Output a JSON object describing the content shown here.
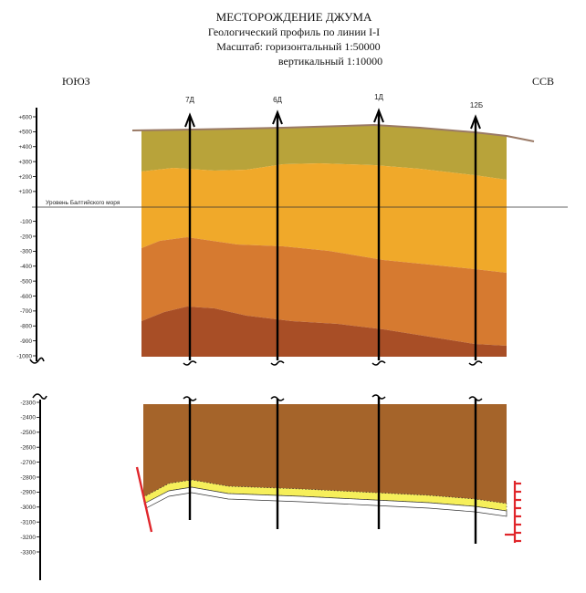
{
  "title": {
    "line1": "МЕСТОРОЖДЕНИЕ ДЖУМА",
    "line2": "Геологический профиль по линии I-I",
    "line3": "Масштаб: горизонтальный   1:50000",
    "line4": "вертикальный   1:10000"
  },
  "direction": {
    "left": "ЮЮЗ",
    "right": "ССВ"
  },
  "sea_level_label": "Уровень Балтийского моря",
  "wells": [
    "7Д",
    "6Д",
    "1Д",
    "12Б"
  ],
  "axis_upper_ticks": [
    "+600",
    "+500",
    "+400",
    "+300",
    "+200",
    "+100",
    "-100",
    "-200",
    "-300",
    "-400",
    "-500",
    "-600",
    "-700",
    "-800",
    "-900",
    "-1000"
  ],
  "axis_lower_ticks": [
    "-2300",
    "-2400",
    "-2500",
    "-2600",
    "-2700",
    "-2800",
    "-2900",
    "-3000",
    "-3100",
    "-3200",
    "-3300"
  ],
  "colors": {
    "layer_top": "#b8a33a",
    "layer_orange": "#f0a92a",
    "layer_mid": "#d67a30",
    "layer_deep": "#a84e26",
    "lower_body": "#a5642a",
    "reservoir": "#f6ef5a",
    "fault": "#e0262b",
    "well": "#000000"
  }
}
